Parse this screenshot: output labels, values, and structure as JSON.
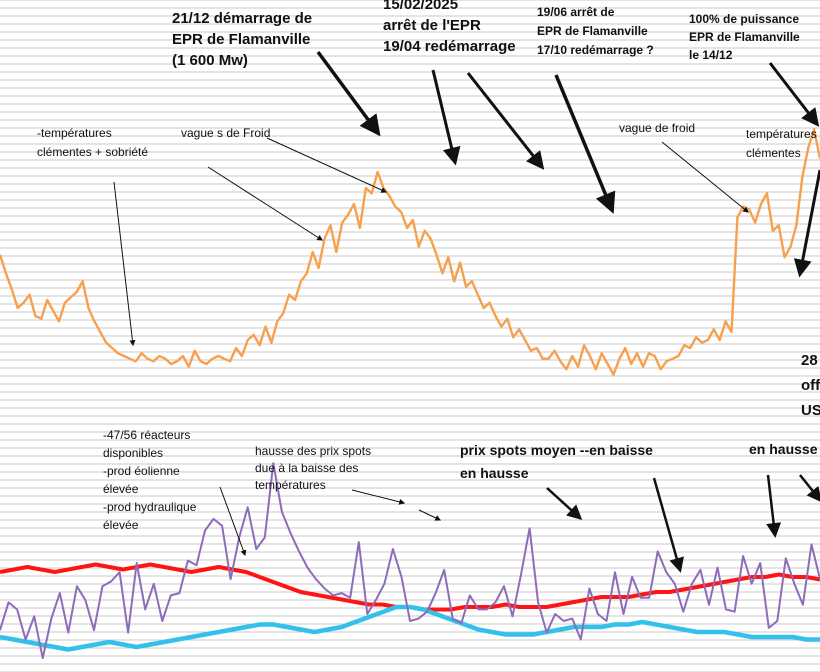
{
  "annotations": {
    "epr_start": [
      "21/12 démarrage de",
      "EPR de Flamanville",
      "(1 600 Mw)"
    ],
    "epr_stop": [
      "15/02/2025",
      "arrêt de  l'EPR",
      "19/04 redémarrage"
    ],
    "epr_stop2": [
      "19/06 arrêt de",
      "EPR de Flamanville",
      "17/10 redémarrage ?"
    ],
    "epr_full": [
      "100% de puissance",
      "EPR de Flamanville",
      "le 14/12"
    ],
    "mild_temps": [
      "-températures",
      "clémentes + sobriété"
    ],
    "cold_waves": "vague s de Froid",
    "cold_wave2": "vague de froid",
    "mild_temps2": [
      "températures",
      "clémentes"
    ],
    "reactors": [
      "-47/56 réacteurs",
      "disponibles",
      "-prod éolienne",
      "élevée",
      "-prod hydraulique",
      "élevée"
    ],
    "spot_rise": [
      "hausse des prix spots",
      "due à la baisse des",
      "températures"
    ],
    "spot_avg": [
      "prix spots moyen --en  baisse",
      "en  hausse"
    ],
    "hausse_right": "en hausse",
    "cut_right": [
      "28",
      "off",
      "US"
    ]
  },
  "colors": {
    "demand": "#f7a04e",
    "spot": "#8e6cb8",
    "avg": "#ff1414",
    "cyan": "#33c1ec",
    "grid": "#c8c8c8"
  },
  "chart_data": {
    "type": "line",
    "title": "",
    "xlabel": "",
    "ylabel": "",
    "grid": true,
    "series": [
      {
        "values": [
          62,
          55,
          49,
          42,
          44,
          47,
          39,
          38,
          45,
          41,
          37,
          44,
          46,
          48,
          52,
          42,
          37,
          33,
          29,
          27,
          25,
          24,
          23,
          22,
          25,
          23,
          22,
          24,
          23,
          21,
          22,
          24,
          20,
          26,
          22,
          21,
          23,
          24,
          23,
          22,
          27,
          24,
          30,
          32,
          28,
          35,
          29,
          37,
          40,
          47,
          45,
          52,
          55,
          63,
          57,
          68,
          73,
          63,
          74,
          77,
          81,
          72,
          87,
          85,
          93,
          87,
          84,
          80,
          78,
          72,
          75,
          65,
          71,
          68,
          62,
          55,
          61,
          52,
          59,
          50,
          52,
          47,
          42,
          44,
          39,
          35,
          38,
          31,
          34,
          30,
          26,
          27,
          23,
          23,
          26,
          22,
          19,
          24,
          20,
          28,
          24,
          19,
          25,
          21,
          17,
          23,
          27,
          21,
          25,
          20,
          25,
          24,
          19,
          22,
          23,
          24,
          28,
          27,
          31,
          29,
          30,
          34,
          30,
          37,
          33,
          76,
          80,
          79,
          74,
          81,
          85,
          71,
          73,
          61,
          65,
          73,
          91,
          102,
          109,
          98
        ]
      },
      {
        "values": [
          18,
          30,
          27,
          14,
          24,
          6,
          23,
          34,
          17,
          37,
          31,
          18,
          37,
          39,
          43,
          17,
          47,
          27,
          38,
          22,
          33,
          34,
          48,
          46,
          61,
          66,
          63,
          40,
          58,
          71,
          53,
          58,
          90,
          69,
          60,
          52,
          45,
          40,
          36,
          33,
          34,
          32,
          56,
          25,
          31,
          38,
          53,
          41,
          22,
          23,
          26,
          34,
          44,
          23,
          21,
          33,
          27,
          27,
          30,
          37,
          24,
          42,
          62,
          30,
          17,
          25,
          22,
          23,
          14,
          36,
          25,
          22,
          43,
          25,
          41,
          32,
          32,
          52,
          43,
          38,
          26,
          38,
          44,
          29,
          45,
          27,
          26,
          50,
          38,
          47,
          19,
          22,
          49,
          38,
          29,
          55,
          40
        ]
      },
      {
        "values": [
          20,
          20.5,
          21,
          20.5,
          20,
          20.5,
          21,
          21.5,
          21,
          20.5,
          21,
          21.5,
          21,
          20.5,
          20,
          20.5,
          21,
          20.5,
          20,
          19,
          18,
          17,
          16,
          15.5,
          15,
          14.5,
          14,
          13.5,
          13.5,
          13,
          13,
          12.5,
          12.5,
          12.5,
          13,
          13,
          13,
          13.5,
          13,
          13,
          13,
          13.5,
          14,
          14.5,
          15,
          15,
          15,
          15.5,
          16,
          16,
          16.5,
          17,
          17.5,
          18,
          18.5,
          19,
          19,
          19.5,
          19,
          19,
          18.5
        ]
      },
      {
        "values": [
          7,
          6.5,
          6,
          5.5,
          5,
          4.5,
          5,
          5.5,
          6,
          5.5,
          5,
          5.5,
          6,
          6.5,
          7,
          7.5,
          8,
          8.5,
          9,
          9.5,
          9.5,
          9,
          8.5,
          8,
          8.5,
          9,
          10,
          11,
          12,
          13,
          13,
          12.5,
          11.5,
          10.5,
          9.5,
          8.5,
          8,
          7.5,
          7.5,
          7.5,
          8,
          8.5,
          9,
          9,
          9,
          9.5,
          9.5,
          10,
          9.5,
          9,
          8.5,
          8,
          8,
          8,
          7.5,
          7,
          7,
          7,
          7,
          6.5,
          6.5
        ]
      }
    ]
  }
}
